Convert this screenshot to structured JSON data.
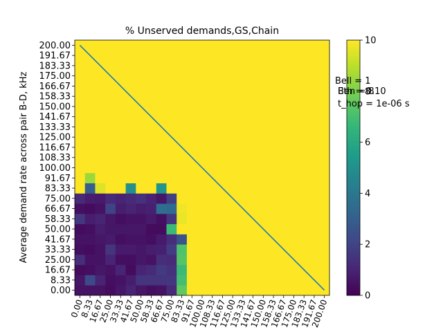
{
  "chart_data": {
    "type": "heatmap",
    "title": "% Unserved demands,GS,Chain",
    "ylabel": "Average demand rate across pair B-D, kHz",
    "xlabel": "",
    "x_tick_labels": [
      "0.00",
      "8.33",
      "16.67",
      "25.00",
      "33.33",
      "41.67",
      "50.00",
      "58.33",
      "66.67",
      "75.00",
      "83.33",
      "91.67",
      "100.00",
      "108.33",
      "116.67",
      "125.00",
      "133.33",
      "141.67",
      "150.00",
      "158.33",
      "166.67",
      "175.00",
      "183.33",
      "191.67",
      "200.00"
    ],
    "y_tick_labels": [
      "0.00",
      "8.33",
      "16.67",
      "25.00",
      "33.33",
      "41.67",
      "50.00",
      "58.33",
      "66.67",
      "75.00",
      "83.33",
      "91.67",
      "100.00",
      "108.33",
      "116.67",
      "125.00",
      "133.33",
      "141.67",
      "150.00",
      "158.33",
      "166.67",
      "175.00",
      "183.33",
      "191.67",
      "200.00"
    ],
    "colorbar": {
      "colormap": "viridis",
      "vmin": 0,
      "vmax": 10,
      "ticks": [
        "0",
        "2",
        "4",
        "6",
        "8",
        "10"
      ]
    },
    "default_value": 10,
    "cells": [
      [
        0,
        [
          0.5,
          0.5,
          0.5,
          0.3,
          0.6,
          1.0,
          0.6,
          0.4,
          0.5,
          1.2,
          7.5
        ]
      ],
      [
        1,
        [
          0.6,
          2.2,
          1.0,
          0.4,
          0.5,
          0.8,
          1.5,
          1.5,
          1.5,
          1.6,
          7.0
        ]
      ],
      [
        2,
        [
          0.3,
          0.4,
          0.6,
          0.5,
          1.0,
          0.3,
          1.0,
          1.2,
          1.7,
          1.4,
          6.8
        ]
      ],
      [
        3,
        [
          1.3,
          0.5,
          0.5,
          1.0,
          0.4,
          0.4,
          0.6,
          0.5,
          1.3,
          1.2,
          7.3
        ]
      ],
      [
        4,
        [
          0.4,
          0.3,
          0.5,
          1.5,
          0.7,
          0.7,
          0.6,
          0.8,
          0.9,
          1.8,
          7.2
        ]
      ],
      [
        5,
        [
          0.5,
          0.5,
          0.6,
          0.7,
          0.4,
          0.5,
          0.5,
          0.4,
          0.7,
          1.3,
          2.6
        ]
      ],
      [
        6,
        [
          0.3,
          0.4,
          0.8,
          0.6,
          0.6,
          0.6,
          0.6,
          0.3,
          0.3,
          6.8
        ]
      ],
      [
        7,
        [
          1.6,
          0.8,
          1.0,
          0.6,
          0.4,
          0.5,
          0.5,
          0.7,
          0.4,
          1.5,
          9.7
        ]
      ],
      [
        8,
        [
          0.4,
          0.3,
          0.5,
          2.0,
          0.8,
          1.0,
          0.8,
          0.9,
          3.6,
          3.4,
          9.8
        ]
      ],
      [
        9,
        [
          1.2,
          0.8,
          0.7,
          1.2,
          1.0,
          1.2,
          1.4,
          1.0,
          0.6,
          1.9
        ]
      ],
      [
        10,
        [
          10,
          3.0,
          9.5,
          10,
          10,
          5.0,
          10,
          10,
          5.2
        ]
      ],
      [
        11,
        [
          10,
          8.5
        ]
      ]
    ],
    "diagonal_line": {
      "from": [
        "0.00",
        "200.00"
      ],
      "to": [
        "200.00",
        "0.00"
      ],
      "color": "#1f77b4"
    },
    "annotations": [
      "Bell = 1",
      "Eth = 0.10",
      "t_hop = 1e-06 s",
      "Ben = 8"
    ]
  }
}
